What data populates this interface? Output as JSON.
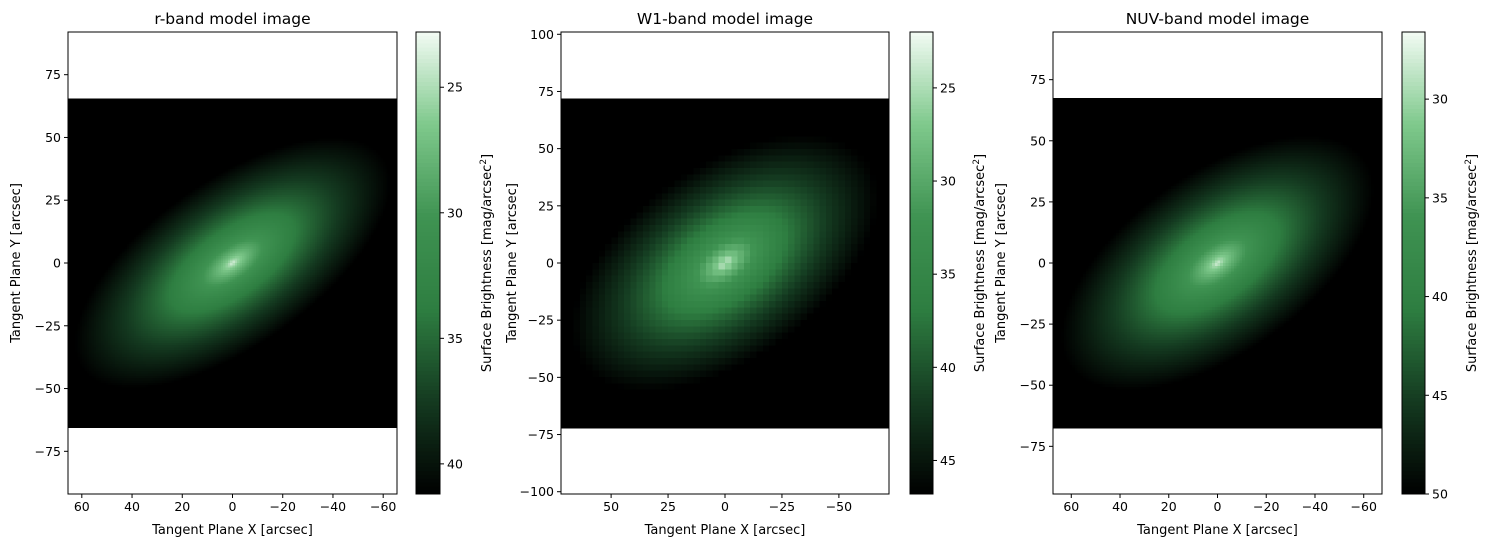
{
  "colors": {
    "cmap": [
      "#000000",
      "#143a20",
      "#2e7e41",
      "#3f9352",
      "#7fc98c",
      "#f3fbf4"
    ],
    "frame": "#000000"
  },
  "chart_data": [
    {
      "type": "heatmap",
      "title": "r-band model image",
      "xlabel": "Tangent Plane X [arcsec]",
      "ylabel": "Tangent Plane Y [arcsec]",
      "xlim": [
        65.5,
        -65.5
      ],
      "ylim": [
        -92,
        92
      ],
      "xticks": [
        60,
        40,
        20,
        0,
        -20,
        -40,
        -60
      ],
      "xticklabels": [
        "60",
        "40",
        "20",
        "0",
        "−20",
        "−40",
        "−60"
      ],
      "yticks": [
        -75,
        -50,
        -25,
        0,
        25,
        50,
        75
      ],
      "yticklabels": [
        "−75",
        "−50",
        "−25",
        "0",
        "25",
        "50",
        "75"
      ],
      "image_extent": {
        "x": [
          65.5,
          -65.5
        ],
        "y": [
          -65.5,
          65.5
        ]
      },
      "pixels": 140,
      "model": {
        "center_mag": 22.8,
        "edge_mag": 39.0,
        "mag_max": 41.2,
        "scale_arcsec": 58,
        "axis_ratio": 0.45,
        "pa_deg": 35
      },
      "colorbar": {
        "vmin": 22.8,
        "vmax": 41.2,
        "reversed": true,
        "ticks": [
          25,
          30,
          35,
          40
        ],
        "ticklabels": [
          "25",
          "30",
          "35",
          "40"
        ],
        "label": "Surface Brightness [mag/arcsec$^2$]"
      }
    },
    {
      "type": "heatmap",
      "title": "W1-band model image",
      "xlabel": "Tangent Plane X [arcsec]",
      "ylabel": "Tangent Plane Y [arcsec]",
      "xlim": [
        72,
        -72
      ],
      "ylim": [
        -101,
        101
      ],
      "xticks": [
        50,
        25,
        0,
        -25,
        -50
      ],
      "xticklabels": [
        "50",
        "25",
        "0",
        "−25",
        "−50"
      ],
      "yticks": [
        -100,
        -75,
        -50,
        -25,
        0,
        25,
        50,
        75,
        100
      ],
      "yticklabels": [
        "−100",
        "−75",
        "−50",
        "−25",
        "0",
        "25",
        "50",
        "75",
        "100"
      ],
      "image_extent": {
        "x": [
          72,
          -72
        ],
        "y": [
          -72,
          72
        ]
      },
      "pixels": 52,
      "model": {
        "center_mag": 22.0,
        "edge_mag": 44.5,
        "mag_max": 46.8,
        "scale_arcsec": 64,
        "axis_ratio": 0.55,
        "pa_deg": 35
      },
      "colorbar": {
        "vmin": 22.0,
        "vmax": 46.8,
        "reversed": true,
        "ticks": [
          25,
          30,
          35,
          40,
          45
        ],
        "ticklabels": [
          "25",
          "30",
          "35",
          "40",
          "45"
        ],
        "label": "Surface Brightness [mag/arcsec$^2$]"
      }
    },
    {
      "type": "heatmap",
      "title": "NUV-band model image",
      "xlabel": "Tangent Plane X [arcsec]",
      "ylabel": "Tangent Plane Y [arcsec]",
      "xlim": [
        67.5,
        -67.5
      ],
      "ylim": [
        -94.5,
        94.5
      ],
      "xticks": [
        60,
        40,
        20,
        0,
        -20,
        -40,
        -60
      ],
      "xticklabels": [
        "60",
        "40",
        "20",
        "0",
        "−20",
        "−40",
        "−60"
      ],
      "yticks": [
        -75,
        -50,
        -25,
        0,
        25,
        50,
        75
      ],
      "yticklabels": [
        "−75",
        "−50",
        "−25",
        "0",
        "25",
        "50",
        "75"
      ],
      "image_extent": {
        "x": [
          67.5,
          -67.5
        ],
        "y": [
          -67.5,
          67.5
        ]
      },
      "pixels": 120,
      "model": {
        "center_mag": 26.6,
        "edge_mag": 47.5,
        "mag_max": 50.0,
        "scale_arcsec": 60,
        "axis_ratio": 0.5,
        "pa_deg": 35
      },
      "colorbar": {
        "vmin": 26.6,
        "vmax": 50.0,
        "reversed": true,
        "ticks": [
          30,
          35,
          40,
          45,
          50
        ],
        "ticklabels": [
          "30",
          "35",
          "40",
          "45",
          "50"
        ],
        "label": "Surface Brightness [mag/arcsec$^2$]"
      }
    }
  ]
}
